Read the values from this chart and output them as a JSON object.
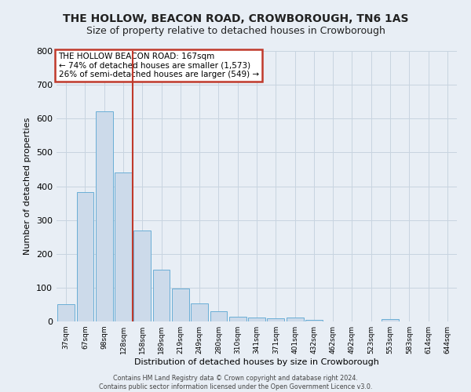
{
  "title": "THE HOLLOW, BEACON ROAD, CROWBOROUGH, TN6 1AS",
  "subtitle": "Size of property relative to detached houses in Crowborough",
  "xlabel": "Distribution of detached houses by size in Crowborough",
  "ylabel": "Number of detached properties",
  "categories": [
    "37sqm",
    "67sqm",
    "98sqm",
    "128sqm",
    "158sqm",
    "189sqm",
    "219sqm",
    "249sqm",
    "280sqm",
    "310sqm",
    "341sqm",
    "371sqm",
    "401sqm",
    "432sqm",
    "462sqm",
    "492sqm",
    "523sqm",
    "553sqm",
    "583sqm",
    "614sqm",
    "644sqm"
  ],
  "values": [
    50,
    383,
    622,
    440,
    270,
    152,
    98,
    53,
    30,
    15,
    12,
    10,
    12,
    5,
    0,
    0,
    0,
    8,
    0,
    0,
    0
  ],
  "bar_color": "#ccdaea",
  "bar_edge_color": "#6aaed6",
  "vline_x": 3.5,
  "vline_color": "#c0392b",
  "annotation_title": "THE HOLLOW BEACON ROAD: 167sqm",
  "annotation_line1": "← 74% of detached houses are smaller (1,573)",
  "annotation_line2": "26% of semi-detached houses are larger (549) →",
  "annotation_box_edgecolor": "#c0392b",
  "ylim": [
    0,
    800
  ],
  "yticks": [
    0,
    100,
    200,
    300,
    400,
    500,
    600,
    700,
    800
  ],
  "grid_color": "#c8d4e0",
  "background_color": "#e8eef5",
  "title_fontsize": 10,
  "subtitle_fontsize": 9,
  "footer": "Contains HM Land Registry data © Crown copyright and database right 2024.\nContains public sector information licensed under the Open Government Licence v3.0."
}
